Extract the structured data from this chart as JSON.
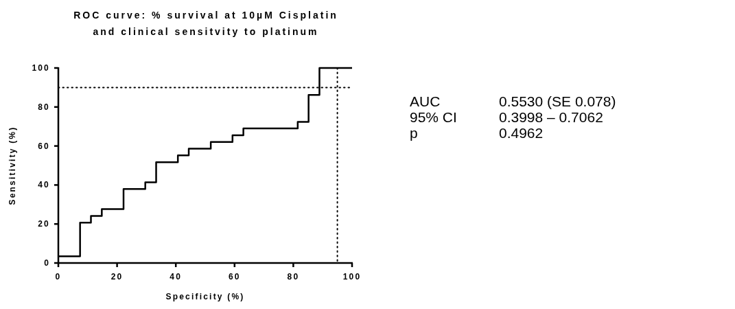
{
  "chart_data": {
    "type": "step",
    "title": "ROC curve: % survival at 10µM Cisplatin\nand clinical sensitvity to platinum",
    "xlabel": "Specificity (%)",
    "ylabel": "Sensitivity (%)",
    "x": [
      0,
      7.4,
      11.1,
      14.8,
      22.2,
      29.6,
      33.3,
      40.7,
      44.4,
      51.9,
      59.3,
      63,
      81.5,
      85.2,
      88.9,
      100
    ],
    "series": [
      {
        "color": "#000000",
        "values": [
          3.4,
          20.7,
          24.1,
          27.6,
          37.9,
          41.4,
          51.7,
          55.2,
          58.6,
          62.1,
          65.5,
          69,
          72.4,
          86.2,
          100,
          100
        ]
      }
    ],
    "xlim": [
      0,
      100
    ],
    "ylim": [
      0,
      100
    ],
    "xticks": [
      0,
      20,
      40,
      60,
      80,
      100
    ],
    "yticks": [
      0,
      20,
      40,
      60,
      80,
      100
    ],
    "ref_lines": [
      {
        "axis": "y",
        "value": 90,
        "line_style": "dotted"
      },
      {
        "axis": "x",
        "value": 95,
        "line_style": "dotted"
      }
    ],
    "annotations": [
      "AUC",
      "0.5530 (SE 0.078)",
      "95% CI",
      "0.3998 – 0.7062",
      "p",
      "0.4962"
    ],
    "marker": "none",
    "line_style": "solid"
  }
}
